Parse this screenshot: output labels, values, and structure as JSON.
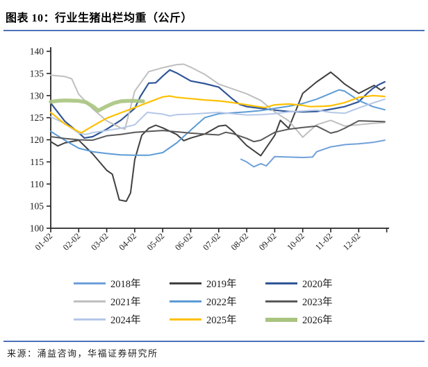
{
  "page": {
    "title": "图表 10：行业生猪出栏均重（公斤）",
    "source": "来源：涌益咨询，华福证券研究所"
  },
  "colors": {
    "accent_rule_blue": "#4b71b7",
    "axis": "#262626",
    "tick_label": "#1a1a1a",
    "background": "#ffffff"
  },
  "chart_data": {
    "type": "line",
    "title": "行业生猪出栏均重（公斤）",
    "xlabel": "",
    "ylabel": "",
    "ylim": [
      100,
      140
    ],
    "y_ticks": [
      100,
      105,
      110,
      115,
      120,
      125,
      130,
      135,
      140
    ],
    "x_tick_labels": [
      "01-02",
      "02-02",
      "03-02",
      "04-02",
      "05-02",
      "06-02",
      "07-02",
      "08-02",
      "09-02",
      "10-02",
      "11-02",
      "12-02"
    ],
    "x_unit": "month-decimal, 1 = 01-02, 12 = 12-02, 12.93 = year end",
    "grid": false,
    "legend_position": "bottom",
    "series": [
      {
        "name": "2018年",
        "color": "#6fa0da",
        "width": 2,
        "x": [
          7.8,
          8,
          8.25,
          8.5,
          8.7,
          9,
          9.5,
          10,
          10.35,
          10.5,
          11,
          11.5,
          12,
          12.5,
          12.93
        ],
        "values": [
          115.6,
          115.0,
          113.9,
          114.6,
          114.1,
          116.2,
          116.1,
          116.0,
          116.1,
          117.3,
          118.4,
          118.9,
          119.1,
          119.4,
          119.9
        ]
      },
      {
        "name": "2019年",
        "color": "#3f3f3f",
        "width": 2,
        "x": [
          1,
          1.25,
          1.5,
          2,
          2.5,
          3,
          3.2,
          3.45,
          3.7,
          3.85,
          4,
          4.25,
          4.5,
          4.75,
          5,
          5.5,
          5.75,
          6,
          6.5,
          7,
          7.25,
          7.5,
          8,
          8.5,
          9,
          9.2,
          9.5,
          10,
          10.5,
          11,
          11.25,
          11.5,
          12,
          12.55,
          12.8,
          12.93
        ],
        "values": [
          119.6,
          118.6,
          119.3,
          119.9,
          116.8,
          113.1,
          112.2,
          106.4,
          106.1,
          108.0,
          115.5,
          121.0,
          122.6,
          123.3,
          122.7,
          121.2,
          119.8,
          120.4,
          121.3,
          123.1,
          123.3,
          122.0,
          118.7,
          116.4,
          121.0,
          124.4,
          122.6,
          130.5,
          133.1,
          135.3,
          134.0,
          132.6,
          130.5,
          132.3,
          131.2,
          131.8
        ]
      },
      {
        "name": "2020年",
        "color": "#2f5597",
        "width": 2.2,
        "x": [
          1,
          1.5,
          2,
          2.2,
          2.5,
          3,
          3.5,
          4,
          4.2,
          4.5,
          4.75,
          5,
          5.25,
          5.5,
          6,
          6.5,
          7,
          7.5,
          7.75,
          8,
          8.5,
          9,
          9.5,
          10,
          10.5,
          11,
          11.5,
          12,
          12.3,
          12.5,
          12.7,
          12.93
        ],
        "values": [
          128.3,
          124.2,
          121.6,
          120.4,
          120.7,
          122.4,
          124.4,
          127.1,
          129.8,
          132.8,
          132.9,
          134.4,
          135.8,
          135.1,
          133.3,
          132.7,
          131.9,
          129.2,
          128.0,
          127.5,
          127.1,
          126.7,
          126.4,
          126.3,
          126.4,
          126.9,
          127.5,
          128.6,
          130.5,
          131.6,
          132.4,
          133.1
        ]
      },
      {
        "name": "2021年",
        "color": "#bfbfbf",
        "width": 2,
        "x": [
          1,
          1.5,
          1.75,
          2,
          2.5,
          3,
          3.5,
          3.65,
          4,
          4.5,
          5,
          5.5,
          5.75,
          6,
          6.5,
          7,
          7.5,
          8,
          8.5,
          9,
          9.5,
          10,
          10.5,
          11,
          11.5,
          12,
          12.5,
          12.93
        ],
        "values": [
          134.6,
          134.3,
          133.8,
          130.3,
          127.0,
          124.3,
          122.7,
          122.4,
          131.0,
          135.4,
          136.3,
          137.0,
          137.1,
          136.4,
          134.8,
          132.6,
          131.5,
          130.4,
          128.9,
          126.3,
          124.3,
          120.6,
          123.4,
          124.4,
          123.1,
          123.4,
          123.7,
          123.9
        ]
      },
      {
        "name": "2022年",
        "color": "#5b9bd5",
        "width": 2,
        "x": [
          1,
          1.5,
          2,
          2.5,
          3,
          3.5,
          4,
          4.5,
          5,
          5.5,
          6,
          6.5,
          7,
          7.5,
          8,
          8.5,
          9,
          9.5,
          10,
          10.5,
          11,
          11.3,
          11.5,
          12,
          12.5,
          12.93
        ],
        "values": [
          121.9,
          119.9,
          118.1,
          117.3,
          116.9,
          116.6,
          116.5,
          116.5,
          117.1,
          119.3,
          122.2,
          125.0,
          125.9,
          126.1,
          126.3,
          126.6,
          127.1,
          127.6,
          128.2,
          129.2,
          130.5,
          131.3,
          131.0,
          128.9,
          127.5,
          126.8
        ]
      },
      {
        "name": "2023年",
        "color": "#595959",
        "width": 2,
        "x": [
          1,
          1.5,
          2,
          2.5,
          3,
          3.5,
          4,
          4.5,
          5,
          5.5,
          6,
          6.5,
          7,
          7.25,
          7.5,
          8,
          8.25,
          8.5,
          9,
          9.5,
          10,
          10.5,
          11,
          11.25,
          11.5,
          12,
          12.5,
          12.93
        ],
        "values": [
          120.7,
          120.3,
          120.0,
          119.9,
          120.9,
          121.2,
          121.7,
          121.9,
          122.1,
          121.8,
          121.5,
          121.3,
          121.1,
          121.7,
          121.4,
          120.3,
          119.6,
          119.9,
          121.7,
          122.4,
          122.8,
          123.1,
          121.5,
          121.9,
          122.6,
          124.3,
          124.2,
          124.1
        ]
      },
      {
        "name": "2024年",
        "color": "#b4c7e7",
        "width": 2,
        "x": [
          1,
          1.5,
          2,
          2.25,
          2.5,
          3,
          3.5,
          4,
          4.45,
          5,
          5.25,
          5.5,
          6,
          6.5,
          7,
          7.5,
          8,
          8.5,
          9,
          9.5,
          10,
          10.5,
          11,
          11.5,
          12,
          12.5,
          12.93
        ],
        "values": [
          125.2,
          123.7,
          121.5,
          121.2,
          121.6,
          122.1,
          122.6,
          123.4,
          126.2,
          125.8,
          125.4,
          125.7,
          125.8,
          126.0,
          126.2,
          125.9,
          125.6,
          125.7,
          125.9,
          126.3,
          126.5,
          126.7,
          126.2,
          126.0,
          127.2,
          128.3,
          129.2
        ]
      },
      {
        "name": "2025年",
        "color": "#ffc000",
        "width": 2.2,
        "x": [
          1,
          1.25,
          1.5,
          2,
          2.1,
          2.5,
          3,
          3.5,
          4,
          4.5,
          5,
          5.25,
          5.5,
          6,
          6.5,
          7,
          7.5,
          8,
          8.5,
          8.65,
          9,
          9.5,
          10,
          10.25,
          10.75,
          11,
          11.5,
          12,
          12.5,
          12.93
        ],
        "values": [
          126.2,
          124.9,
          123.6,
          121.8,
          121.6,
          123.1,
          124.9,
          126.1,
          127.3,
          128.5,
          129.7,
          129.9,
          129.6,
          129.3,
          129.0,
          128.8,
          128.4,
          127.9,
          127.4,
          127.3,
          127.9,
          128.1,
          127.8,
          127.5,
          127.6,
          127.7,
          128.4,
          129.6,
          130.0,
          129.8
        ]
      },
      {
        "name": "2026年",
        "color": "#a9c47f",
        "width": 5.5,
        "x": [
          1,
          1.25,
          1.5,
          2,
          2.25,
          2.5,
          2.7,
          3,
          3.25,
          3.5,
          3.75,
          4,
          4.3
        ],
        "values": [
          128.6,
          128.8,
          128.9,
          128.8,
          128.5,
          127.6,
          126.6,
          127.6,
          128.3,
          128.7,
          128.8,
          128.8,
          128.7
        ]
      }
    ]
  }
}
